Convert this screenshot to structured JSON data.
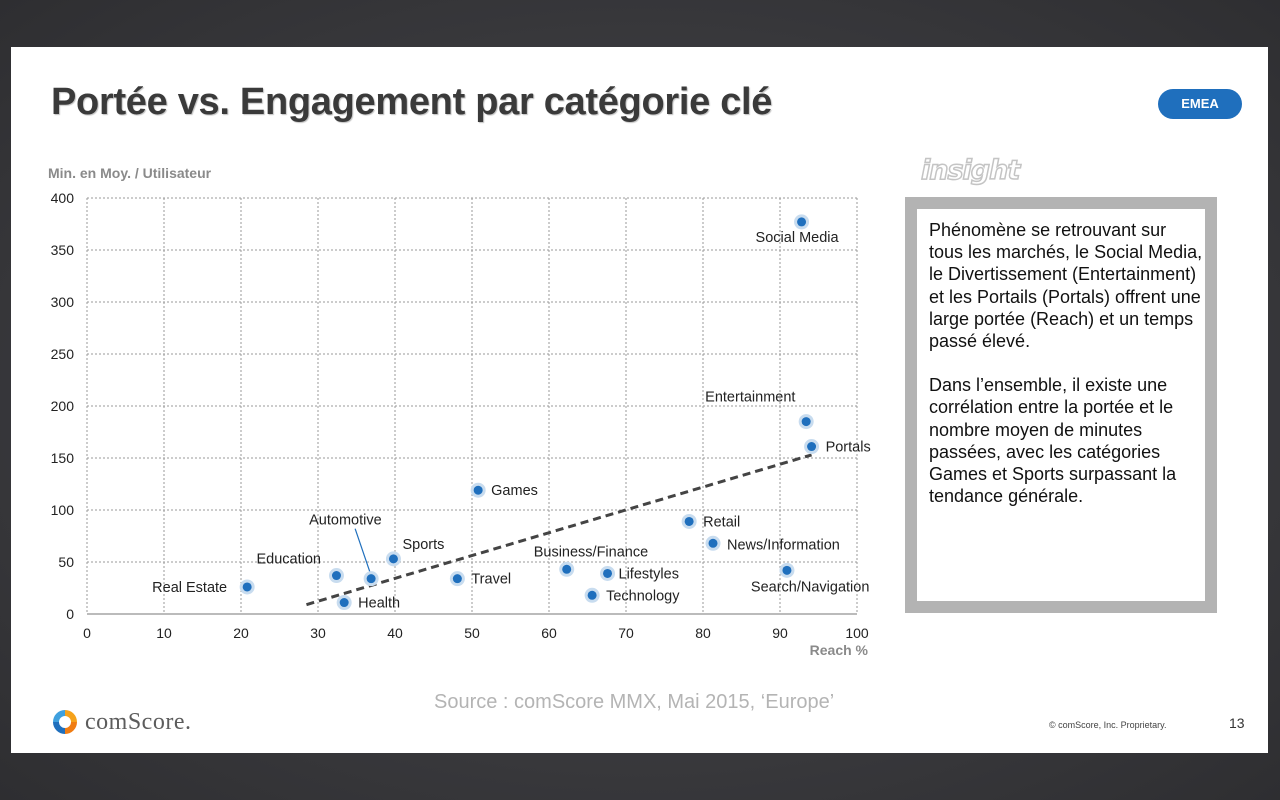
{
  "slide": {
    "title": "Portée vs. Engagement par catégorie clé",
    "region_badge": "EMEA",
    "insight_heading": "insight",
    "insight_paragraphs": [
      "Phénomène se retrouvant sur tous les marchés, le Social Media, le Divertissement (Entertainment) et les Portails (Portals) offrent une large portée (Reach) et un temps passé élevé.",
      "Dans l’ensemble, il existe une corrélation entre la portée et le nombre moyen de minutes passées, avec les catégories Games et Sports surpassant la tendance générale."
    ],
    "source": "Source : comScore MMX, Mai 2015, ‘Europe’",
    "logo_text": "comScore.",
    "copyright": "© comScore, Inc. Proprietary.",
    "page_number": "13",
    "colors": {
      "badge": "#1f6fbd",
      "point": "#1f6fbd",
      "point_halo": "#c8dcef",
      "trend_line": "#444444",
      "insight_border": "#b3b3b3"
    }
  },
  "chart_data": {
    "type": "scatter",
    "ylabel": "Min. en Moy. / Utilisateur",
    "xlabel": "Reach %",
    "xlim": [
      0,
      100
    ],
    "ylim": [
      0,
      400
    ],
    "xticks": [
      0,
      10,
      20,
      30,
      40,
      50,
      60,
      70,
      80,
      90,
      100
    ],
    "yticks": [
      0,
      50,
      100,
      150,
      200,
      250,
      300,
      350,
      400
    ],
    "grid": true,
    "points": [
      {
        "label": "Social Media",
        "x": 92.8,
        "y": 377
      },
      {
        "label": "Entertainment",
        "x": 93.4,
        "y": 185
      },
      {
        "label": "Portals",
        "x": 94.1,
        "y": 161
      },
      {
        "label": "Games",
        "x": 50.8,
        "y": 119
      },
      {
        "label": "Retail",
        "x": 78.2,
        "y": 89
      },
      {
        "label": "News/Information",
        "x": 81.3,
        "y": 68
      },
      {
        "label": "Search/Navigation",
        "x": 90.9,
        "y": 42
      },
      {
        "label": "Business/Finance",
        "x": 62.3,
        "y": 43
      },
      {
        "label": "Lifestyles",
        "x": 67.6,
        "y": 39
      },
      {
        "label": "Technology",
        "x": 65.6,
        "y": 18
      },
      {
        "label": "Travel",
        "x": 48.1,
        "y": 34
      },
      {
        "label": "Sports",
        "x": 39.8,
        "y": 53
      },
      {
        "label": "Automotive",
        "x": 36.9,
        "y": 34
      },
      {
        "label": "Education",
        "x": 32.4,
        "y": 37
      },
      {
        "label": "Health",
        "x": 33.4,
        "y": 11
      },
      {
        "label": "Real Estate",
        "x": 20.8,
        "y": 26
      }
    ],
    "trendline": {
      "from": [
        28.5,
        9
      ],
      "to": [
        94.1,
        153
      ]
    }
  }
}
